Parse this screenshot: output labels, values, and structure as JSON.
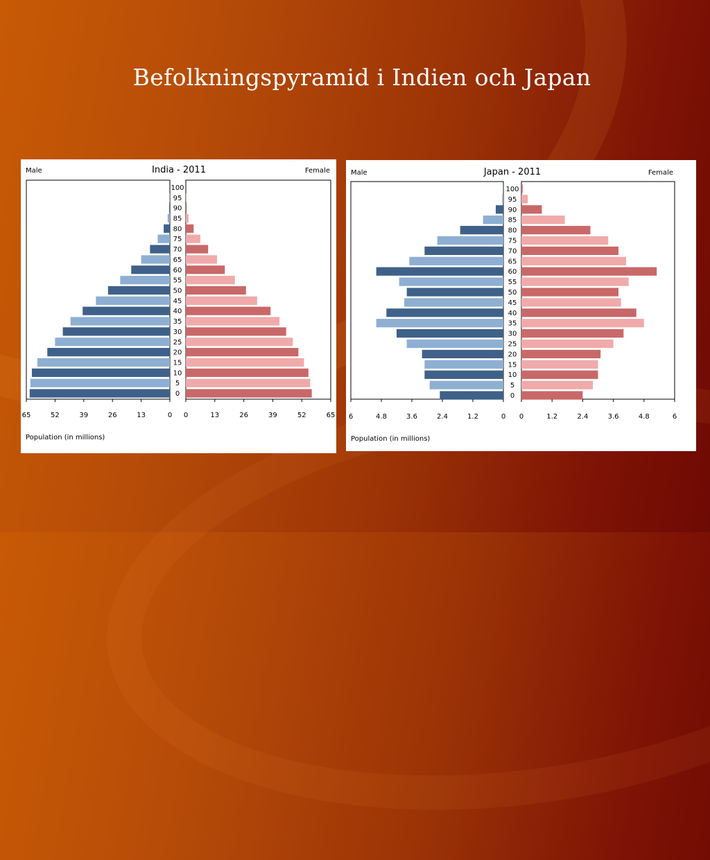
{
  "slide": {
    "title": "Befolkningspyramid i Indien och Japan"
  },
  "colors": {
    "male_dark": "#3f6189",
    "male_light": "#8eafd2",
    "female_dark": "#c96868",
    "female_light": "#f0aaaa"
  },
  "chart_data": [
    {
      "type": "bar",
      "title": "India - 2011",
      "left_label": "Male",
      "right_label": "Female",
      "xlabel": "Population (in millions)",
      "xlim": [
        0,
        65
      ],
      "ticks": [
        "65",
        "52",
        "39",
        "26",
        "13",
        "0"
      ],
      "ticks_right": [
        "0",
        "13",
        "26",
        "39",
        "52",
        "65"
      ],
      "categories": [
        "0",
        "5",
        "10",
        "15",
        "20",
        "25",
        "30",
        "35",
        "40",
        "45",
        "50",
        "55",
        "60",
        "65",
        "70",
        "75",
        "80",
        "85",
        "90",
        "95",
        "100"
      ],
      "series": [
        {
          "name": "Male",
          "values": [
            63.5,
            63.2,
            62.5,
            60.0,
            55.5,
            52.0,
            48.5,
            45.0,
            39.5,
            33.5,
            28.0,
            22.5,
            17.5,
            13.0,
            9.0,
            5.5,
            2.8,
            1.0,
            0.3,
            0.1,
            0.0
          ]
        },
        {
          "name": "Female",
          "values": [
            56.5,
            55.8,
            55.0,
            53.0,
            50.5,
            48.0,
            45.0,
            42.0,
            38.0,
            32.0,
            27.0,
            22.0,
            17.5,
            14.0,
            10.0,
            6.5,
            3.5,
            1.2,
            0.4,
            0.1,
            0.0
          ]
        }
      ]
    },
    {
      "type": "bar",
      "title": "Japan - 2011",
      "left_label": "Male",
      "right_label": "Female",
      "xlabel": "Population (in millions)",
      "xlim": [
        0,
        6
      ],
      "ticks": [
        "6",
        "4.8",
        "3.6",
        "2.4",
        "1.2",
        "0"
      ],
      "ticks_right": [
        "0",
        "1.2",
        "2.4",
        "3.6",
        "4.8",
        "6"
      ],
      "categories": [
        "0",
        "5",
        "10",
        "15",
        "20",
        "25",
        "30",
        "35",
        "40",
        "45",
        "50",
        "55",
        "60",
        "65",
        "70",
        "75",
        "80",
        "85",
        "90",
        "95",
        "100"
      ],
      "series": [
        {
          "name": "Male",
          "values": [
            2.5,
            2.9,
            3.1,
            3.1,
            3.2,
            3.8,
            4.2,
            5.0,
            4.6,
            3.9,
            3.8,
            4.1,
            5.0,
            3.7,
            3.1,
            2.6,
            1.7,
            0.8,
            0.3,
            0.05,
            0.01
          ]
        },
        {
          "name": "Female",
          "values": [
            2.4,
            2.8,
            3.0,
            3.0,
            3.1,
            3.6,
            4.0,
            4.8,
            4.5,
            3.9,
            3.8,
            4.2,
            5.3,
            4.1,
            3.8,
            3.4,
            2.7,
            1.7,
            0.8,
            0.25,
            0.05
          ]
        }
      ]
    }
  ]
}
